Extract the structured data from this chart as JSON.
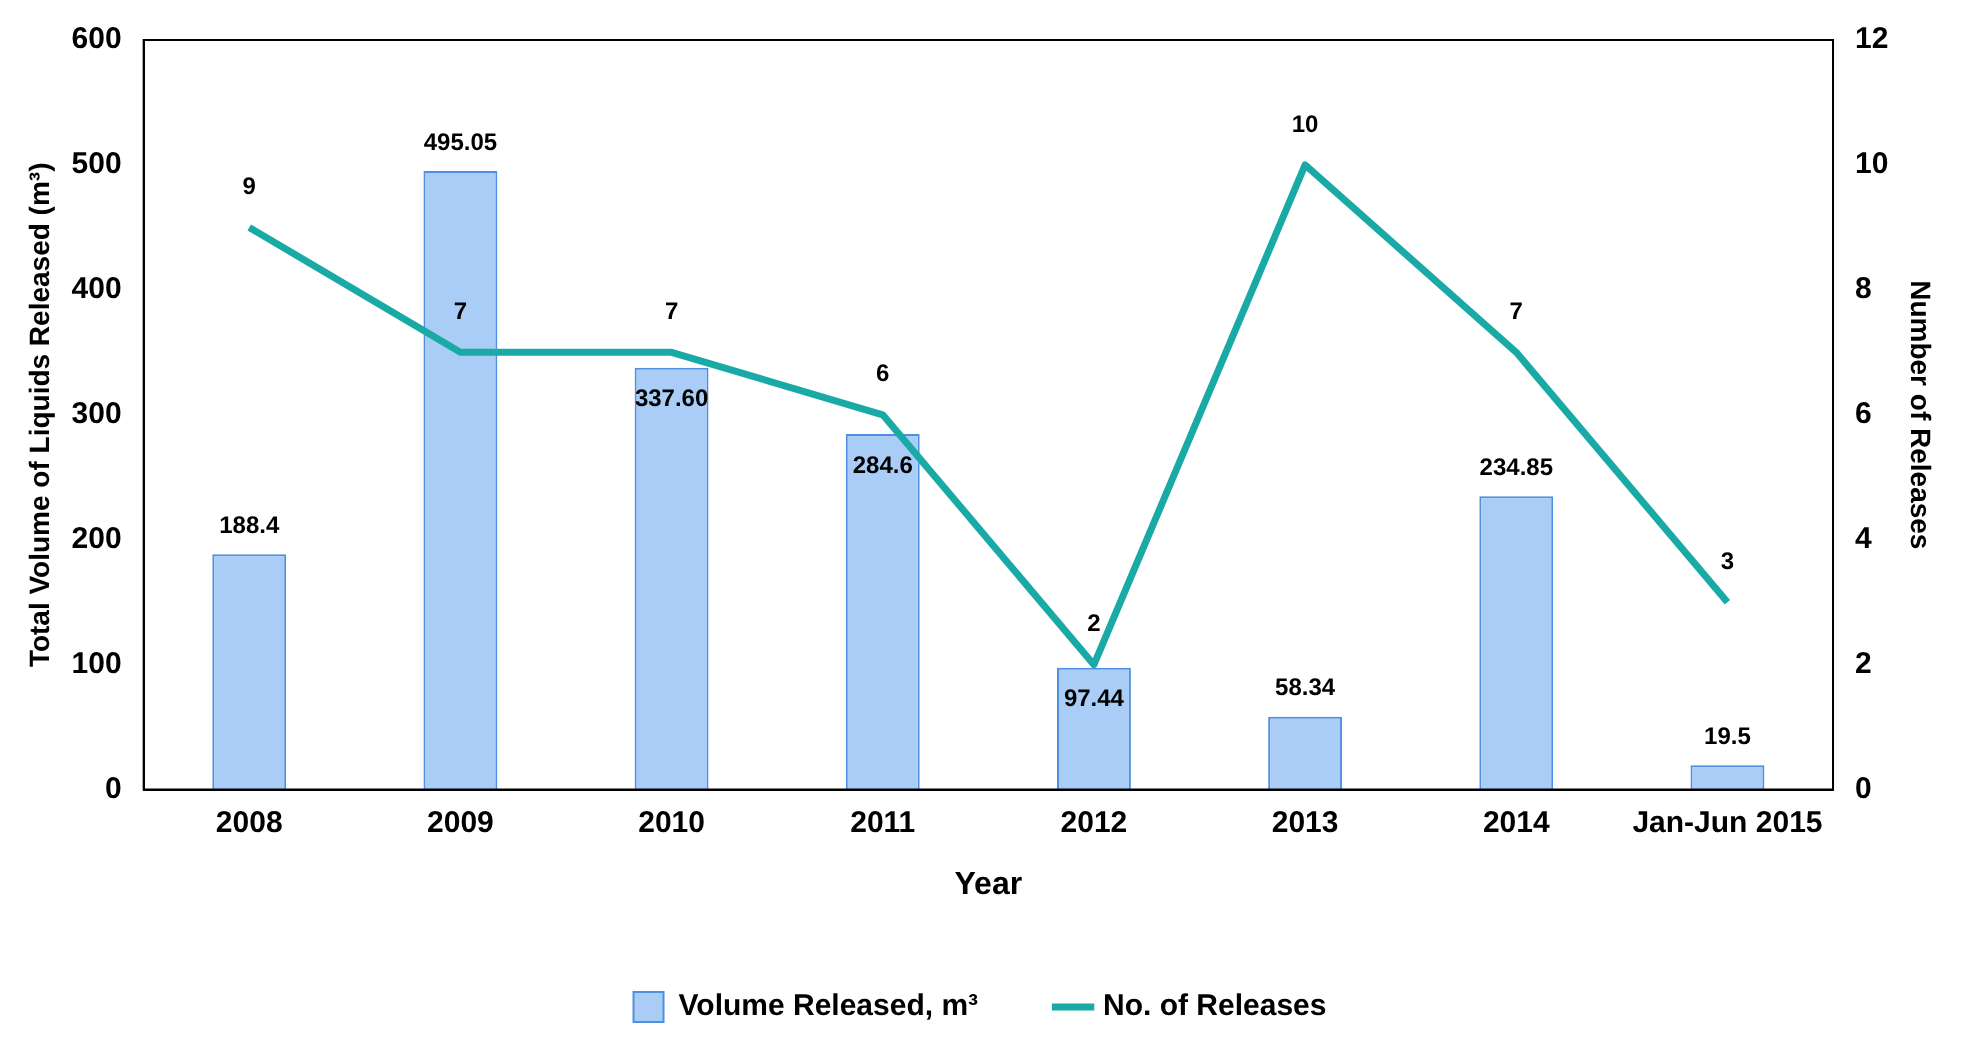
{
  "chart_data": {
    "type": "bar",
    "xlabel": "Year",
    "ylabel": "Total Volume of Liquids Released (m³)",
    "y2label": "Number of Releases",
    "categories": [
      "2008",
      "2009",
      "2010",
      "2011",
      "2012",
      "2013",
      "2014",
      "Jan-Jun 2015"
    ],
    "series": [
      {
        "name": "Volume Released, m³",
        "color": "#a9cdf7",
        "values": [
          188.4,
          495.05,
          337.6,
          284.6,
          97.44,
          58.34,
          234.85,
          19.5
        ],
        "value_labels": [
          "188.4",
          "495.05",
          "337.60",
          "284.6",
          "97.44",
          "58.34",
          "234.85",
          "19.5"
        ]
      },
      {
        "name": "No. of Releases",
        "type": "line",
        "axis": "y2",
        "color": "#1aaaa6",
        "values": [
          9,
          7,
          7,
          6,
          2,
          10,
          7,
          3
        ],
        "value_labels": [
          "9",
          "7",
          "7",
          "6",
          "2",
          "10",
          "7",
          "3"
        ]
      }
    ],
    "ylim": [
      0,
      600
    ],
    "yticks": [
      0,
      100,
      200,
      300,
      400,
      500,
      600
    ],
    "y2lim": [
      0,
      12
    ],
    "y2ticks": [
      0,
      2,
      4,
      6,
      8,
      10,
      12
    ],
    "grid": false,
    "legend": "bottom",
    "marker": "none",
    "line_style": "solid"
  }
}
